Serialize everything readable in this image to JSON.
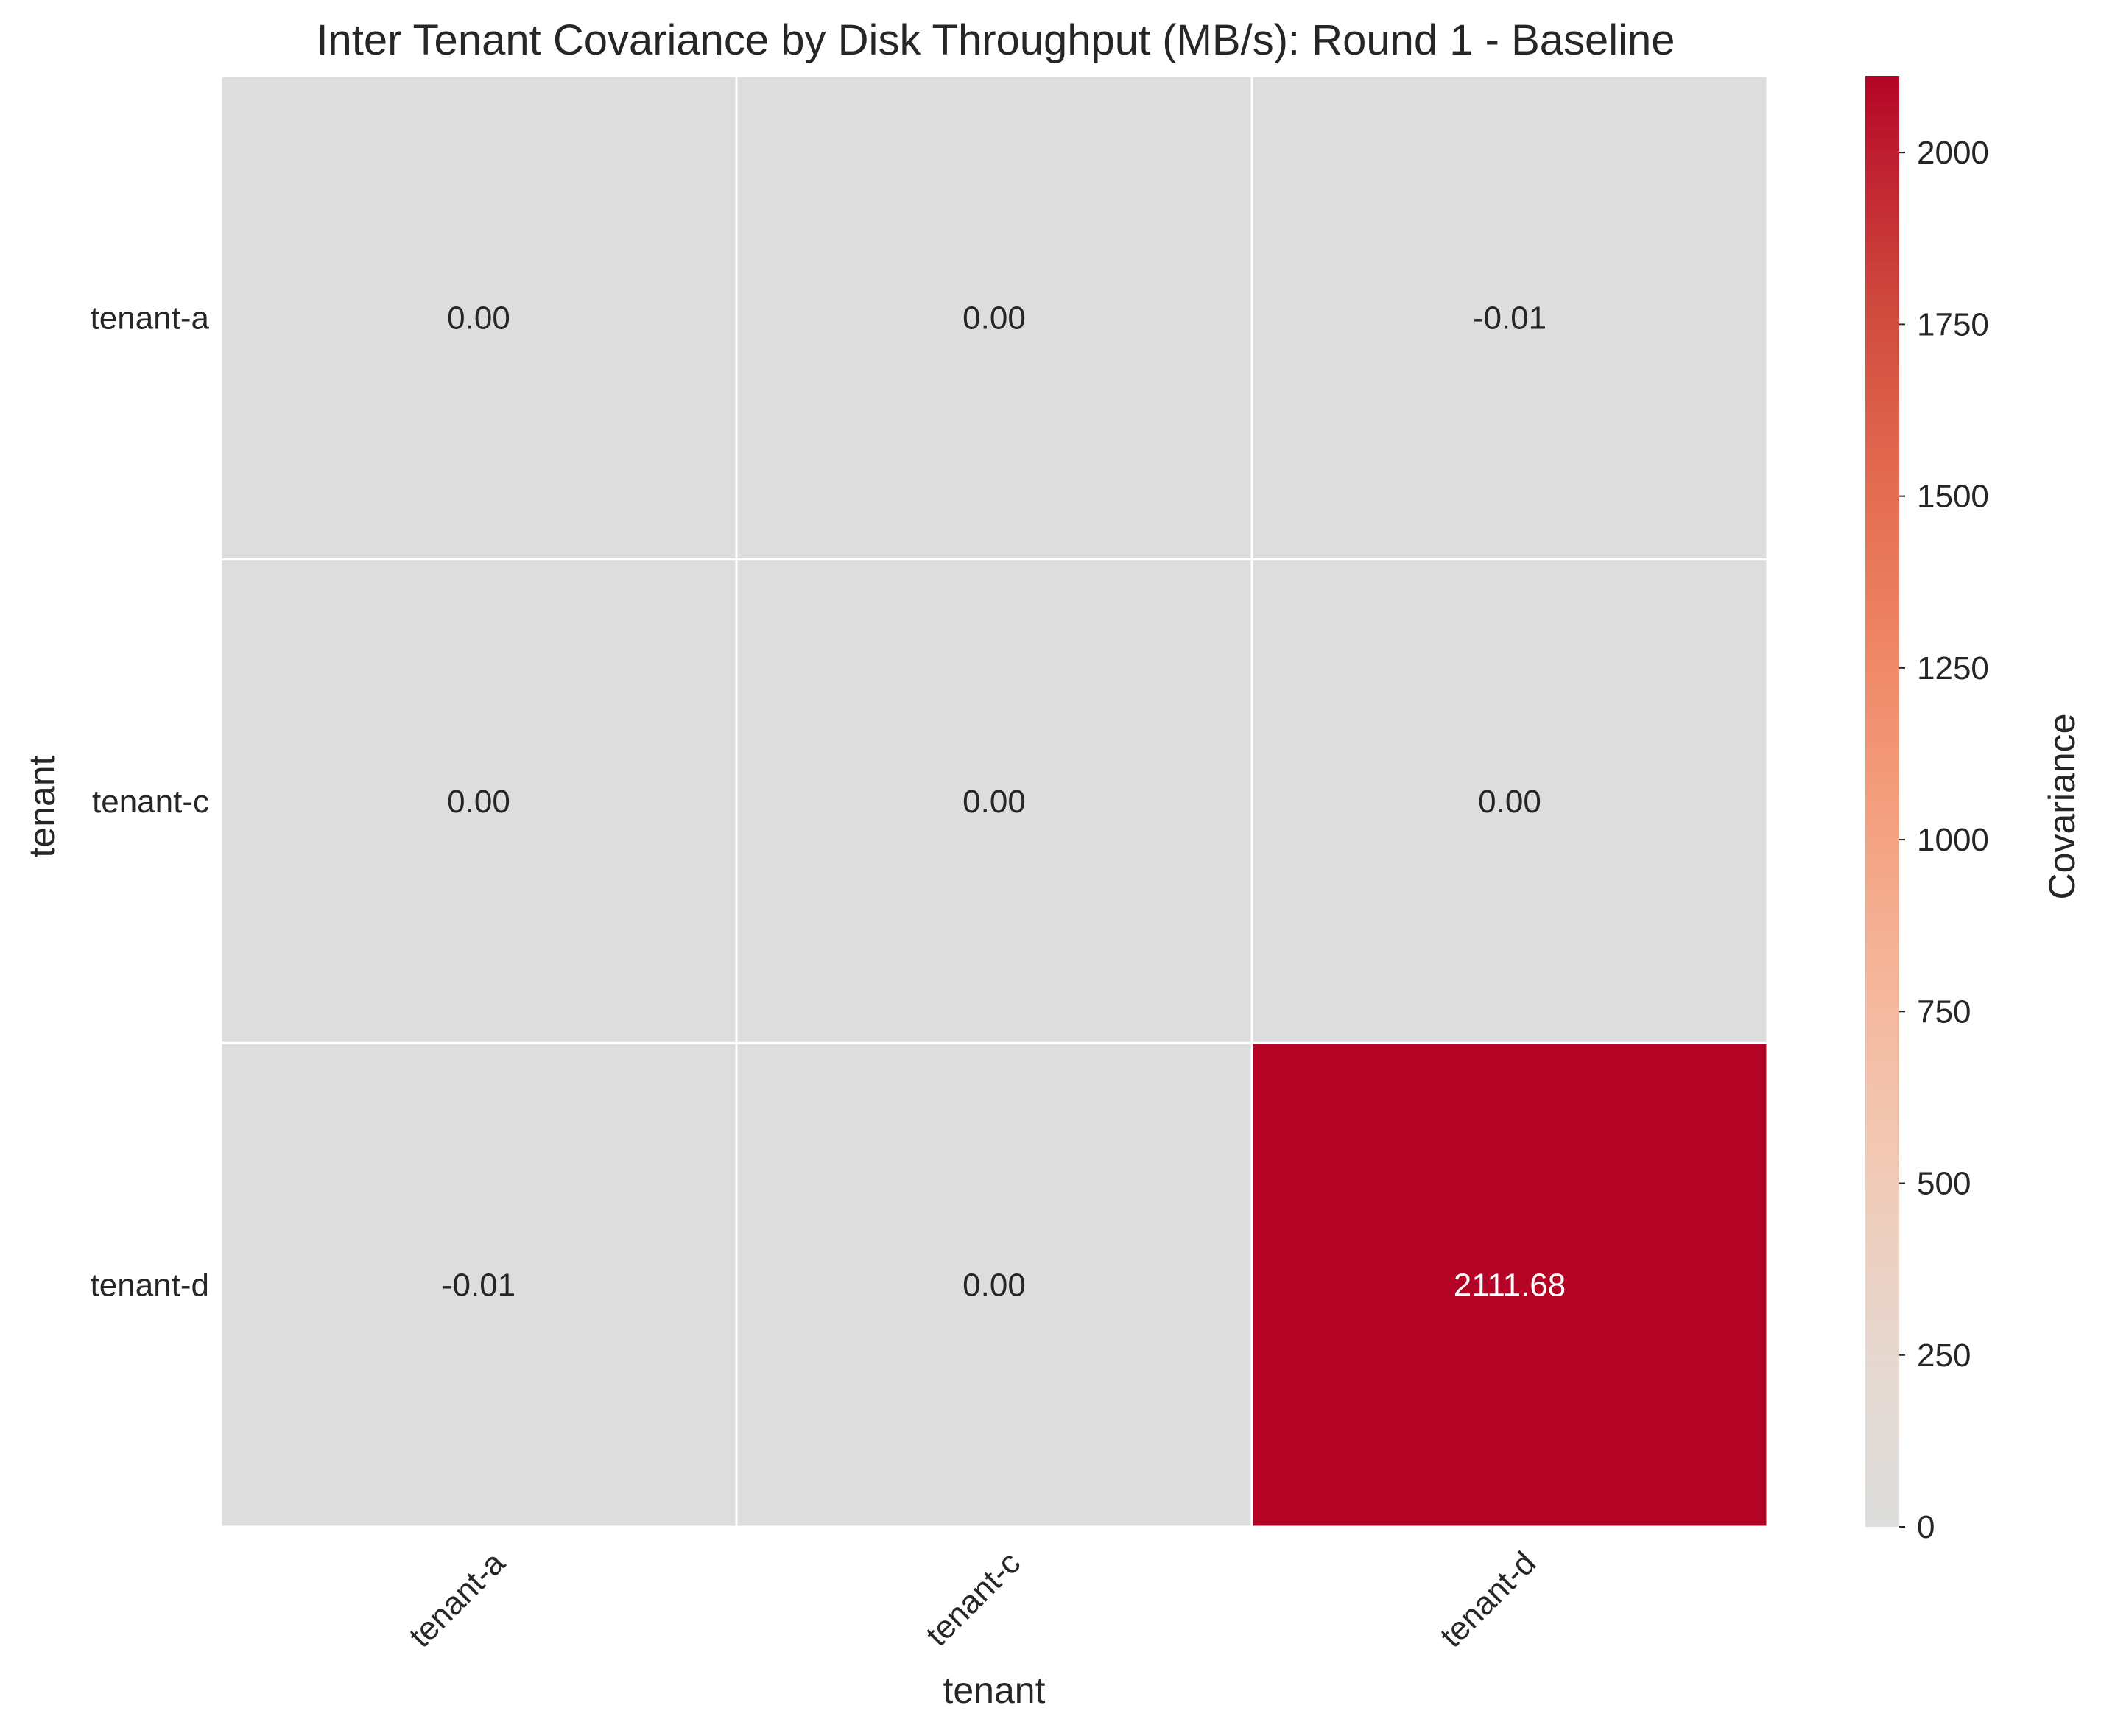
{
  "chart_data": {
    "type": "heatmap",
    "title": "Inter Tenant Covariance by Disk Throughput (MB/s): Round 1 - Baseline",
    "xlabel": "tenant",
    "ylabel": "tenant",
    "x_categories": [
      "tenant-a",
      "tenant-c",
      "tenant-d"
    ],
    "y_categories": [
      "tenant-a",
      "tenant-c",
      "tenant-d"
    ],
    "values": [
      [
        0.0,
        0.0,
        -0.01
      ],
      [
        0.0,
        0.0,
        0.0
      ],
      [
        -0.01,
        0.0,
        2111.68
      ]
    ],
    "value_labels": [
      [
        "0.00",
        "0.00",
        "-0.01"
      ],
      [
        "0.00",
        "0.00",
        "0.00"
      ],
      [
        "-0.01",
        "0.00",
        "2111.68"
      ]
    ],
    "colorbar": {
      "label": "Covariance",
      "range": [
        0,
        2111.68
      ],
      "ticks": [
        0,
        250,
        500,
        750,
        1000,
        1250,
        1500,
        1750,
        2000
      ],
      "colormap": "coolwarm-red (light gray at 0 to dark red at max)"
    },
    "colors": {
      "low": "#dcdddc",
      "high": "#b40426",
      "gridline": "#ffffff",
      "text_dark": "#262626",
      "text_light": "#ffffff"
    }
  }
}
